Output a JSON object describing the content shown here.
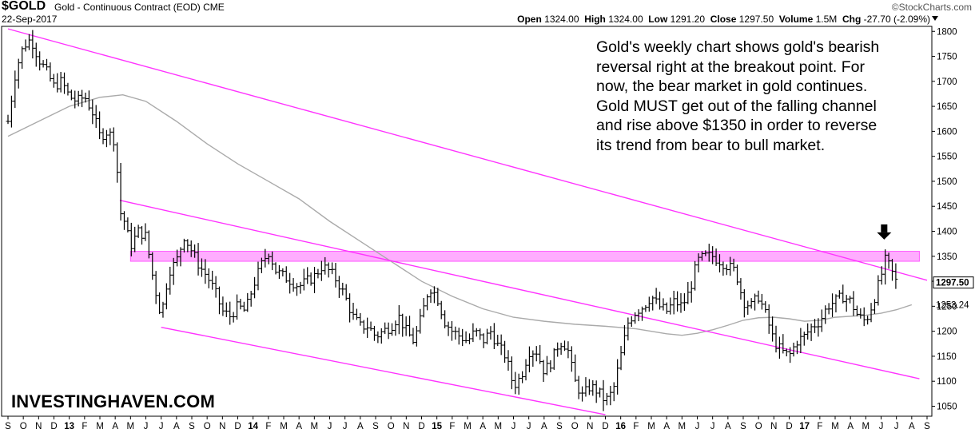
{
  "header": {
    "symbol": "$GOLD",
    "name": "Gold - Continuous Contract (EOD)",
    "exchange": "CME",
    "date": "22-Sep-2017",
    "brand": "©StockCharts.com",
    "open_label": "Open",
    "open": "1324.00",
    "high_label": "High",
    "high": "1324.00",
    "low_label": "Low",
    "low": "1291.20",
    "close_label": "Close",
    "close": "1297.50",
    "volume_label": "Volume",
    "volume": "1.5M",
    "chg_label": "Chg",
    "chg": "-27.70 (-2.09%)"
  },
  "annotation": {
    "lines": [
      "Gold's weekly chart shows gold's bearish",
      "reversal right at the breakout point. For",
      "now, the bear market in gold continues.",
      "Gold MUST get out of the falling channel",
      "and rise above $1350 in order to reverse",
      "its trend from bear to bull market."
    ]
  },
  "watermark": "INVESTINGHAVEN.COM",
  "chart_data": {
    "type": "bar",
    "style": "weekly OHLC price bars",
    "ylim": [
      1030,
      1810
    ],
    "y_ticks": [
      1800,
      1750,
      1700,
      1650,
      1600,
      1550,
      1500,
      1450,
      1400,
      1350,
      1300,
      1250,
      1200,
      1150,
      1100,
      1050
    ],
    "x_labels": [
      "S",
      "O",
      "N",
      "D",
      "13",
      "F",
      "M",
      "A",
      "M",
      "J",
      "J",
      "A",
      "S",
      "O",
      "N",
      "D",
      "14",
      "F",
      "M",
      "A",
      "M",
      "J",
      "J",
      "A",
      "S",
      "O",
      "N",
      "D",
      "15",
      "F",
      "M",
      "A",
      "M",
      "J",
      "J",
      "A",
      "S",
      "O",
      "N",
      "D",
      "16",
      "F",
      "M",
      "A",
      "M",
      "J",
      "J",
      "A",
      "S",
      "O",
      "N",
      "D",
      "17",
      "F",
      "M",
      "A",
      "M",
      "J",
      "J",
      "A",
      "S"
    ],
    "x_range": [
      0,
      60
    ],
    "last_price": {
      "value": 1297.5,
      "label": "1297.50"
    },
    "moving_average": {
      "last_label": "1253.24",
      "color": "#aaaaaa",
      "points": [
        [
          0,
          1590
        ],
        [
          2,
          1620
        ],
        [
          4,
          1650
        ],
        [
          6,
          1668
        ],
        [
          7.5,
          1673
        ],
        [
          9,
          1660
        ],
        [
          11,
          1620
        ],
        [
          13,
          1575
        ],
        [
          15,
          1535
        ],
        [
          17,
          1500
        ],
        [
          19,
          1465
        ],
        [
          21,
          1420
        ],
        [
          23,
          1380
        ],
        [
          25,
          1340
        ],
        [
          27,
          1300
        ],
        [
          29,
          1270
        ],
        [
          31,
          1245
        ],
        [
          33,
          1228
        ],
        [
          35,
          1220
        ],
        [
          37,
          1214
        ],
        [
          39,
          1210
        ],
        [
          41,
          1205
        ],
        [
          42,
          1200
        ],
        [
          43,
          1195
        ],
        [
          44,
          1192
        ],
        [
          45,
          1196
        ],
        [
          46,
          1203
        ],
        [
          47,
          1212
        ],
        [
          48,
          1222
        ],
        [
          49,
          1227
        ],
        [
          50,
          1228
        ],
        [
          51,
          1225
        ],
        [
          52,
          1220
        ],
        [
          53,
          1222
        ],
        [
          54,
          1228
        ],
        [
          55,
          1230
        ],
        [
          56,
          1232
        ],
        [
          57,
          1236
        ],
        [
          58,
          1243
        ],
        [
          59,
          1253
        ]
      ]
    },
    "trendlines": {
      "color": "#ff33ff",
      "lines": [
        {
          "from": [
            0,
            1805
          ],
          "to": [
            60,
            1302
          ]
        },
        {
          "from": [
            7.3,
            1462
          ],
          "to": [
            59.5,
            1105
          ]
        },
        {
          "from": [
            10,
            1208
          ],
          "to": [
            39,
            1033
          ]
        }
      ]
    },
    "resistance_band": {
      "from_value": 1340,
      "to_value": 1360,
      "x_from": 8,
      "x_to": 59.5,
      "color": "#ff99ff"
    },
    "arrow": {
      "x": 57.2,
      "value": 1385
    },
    "price_path": [
      [
        0,
        1620
      ],
      [
        0.5,
        1720
      ],
      [
        1,
        1770
      ],
      [
        1.5,
        1785
      ],
      [
        2,
        1745
      ],
      [
        2.5,
        1720
      ],
      [
        3,
        1690
      ],
      [
        3.5,
        1700
      ],
      [
        4,
        1670
      ],
      [
        4.5,
        1660
      ],
      [
        5,
        1670
      ],
      [
        5.5,
        1640
      ],
      [
        6,
        1590
      ],
      [
        6.5,
        1600
      ],
      [
        7,
        1580
      ],
      [
        7.3,
        1440
      ],
      [
        7.6,
        1420
      ],
      [
        8,
        1370
      ],
      [
        8.5,
        1400
      ],
      [
        9,
        1390
      ],
      [
        9.5,
        1300
      ],
      [
        10,
        1230
      ],
      [
        10.5,
        1320
      ],
      [
        11,
        1340
      ],
      [
        11.5,
        1390
      ],
      [
        12,
        1360
      ],
      [
        12.5,
        1330
      ],
      [
        13,
        1310
      ],
      [
        13.5,
        1280
      ],
      [
        14,
        1240
      ],
      [
        14.5,
        1230
      ],
      [
        15,
        1250
      ],
      [
        15.5,
        1240
      ],
      [
        16,
        1290
      ],
      [
        16.5,
        1330
      ],
      [
        17,
        1360
      ],
      [
        17.5,
        1320
      ],
      [
        18,
        1310
      ],
      [
        18.5,
        1300
      ],
      [
        19,
        1290
      ],
      [
        19.5,
        1300
      ],
      [
        20,
        1310
      ],
      [
        20.5,
        1330
      ],
      [
        21,
        1320
      ],
      [
        21.5,
        1300
      ],
      [
        22,
        1270
      ],
      [
        22.5,
        1230
      ],
      [
        23,
        1210
      ],
      [
        23.5,
        1210
      ],
      [
        24,
        1190
      ],
      [
        24.5,
        1200
      ],
      [
        25,
        1210
      ],
      [
        25.5,
        1230
      ],
      [
        26,
        1200
      ],
      [
        26.5,
        1180
      ],
      [
        27,
        1230
      ],
      [
        27.5,
        1290
      ],
      [
        28,
        1270
      ],
      [
        28.5,
        1220
      ],
      [
        29,
        1200
      ],
      [
        29.5,
        1190
      ],
      [
        30,
        1180
      ],
      [
        30.5,
        1200
      ],
      [
        31,
        1180
      ],
      [
        31.5,
        1200
      ],
      [
        32,
        1170
      ],
      [
        32.5,
        1150
      ],
      [
        33,
        1090
      ],
      [
        33.5,
        1110
      ],
      [
        34,
        1160
      ],
      [
        34.5,
        1160
      ],
      [
        35,
        1120
      ],
      [
        35.5,
        1140
      ],
      [
        36,
        1180
      ],
      [
        36.5,
        1170
      ],
      [
        37,
        1100
      ],
      [
        37.5,
        1070
      ],
      [
        38,
        1090
      ],
      [
        38.5,
        1080
      ],
      [
        39,
        1060
      ],
      [
        39.5,
        1080
      ],
      [
        40,
        1150
      ],
      [
        40.5,
        1220
      ],
      [
        41,
        1240
      ],
      [
        41.5,
        1250
      ],
      [
        42,
        1270
      ],
      [
        42.5,
        1250
      ],
      [
        43,
        1240
      ],
      [
        43.5,
        1260
      ],
      [
        44,
        1250
      ],
      [
        44.5,
        1280
      ],
      [
        45,
        1340
      ],
      [
        45.5,
        1350
      ],
      [
        46,
        1350
      ],
      [
        46.5,
        1340
      ],
      [
        47,
        1330
      ],
      [
        47.5,
        1320
      ],
      [
        48,
        1260
      ],
      [
        48.5,
        1250
      ],
      [
        49,
        1270
      ],
      [
        49.5,
        1230
      ],
      [
        50,
        1180
      ],
      [
        50.5,
        1160
      ],
      [
        51,
        1150
      ],
      [
        51.5,
        1180
      ],
      [
        52,
        1190
      ],
      [
        52.5,
        1210
      ],
      [
        53,
        1220
      ],
      [
        53.5,
        1250
      ],
      [
        54,
        1260
      ],
      [
        54.5,
        1270
      ],
      [
        55,
        1260
      ],
      [
        55.5,
        1230
      ],
      [
        56,
        1220
      ],
      [
        56.5,
        1260
      ],
      [
        57,
        1310
      ],
      [
        57.3,
        1345
      ],
      [
        57.6,
        1325
      ],
      [
        58,
        1297.5
      ]
    ]
  }
}
